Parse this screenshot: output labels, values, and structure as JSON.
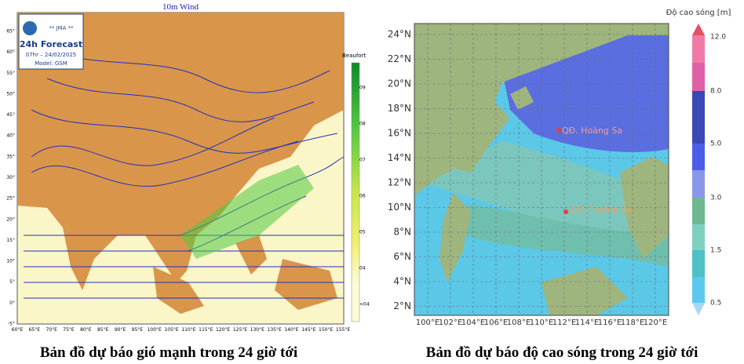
{
  "wind_map": {
    "title": "10m Wind",
    "logo_text": "** JMA **",
    "forecast": "24h Forecast",
    "time": "07hr – 24/02/2025",
    "model": "Model: GSM",
    "legend_title": "Beaufort",
    "legend_ticks": [
      "09",
      "08",
      "07",
      "06",
      "05",
      "04",
      "<04"
    ],
    "lat_labels": [
      "65°",
      "60°",
      "55°",
      "50°",
      "45°",
      "40°",
      "35°",
      "30°",
      "25°",
      "20°",
      "15°",
      "10°",
      "5°",
      "0°",
      "-5°"
    ],
    "lon_labels": [
      "60°E",
      "65°E",
      "70°E",
      "75°E",
      "80°E",
      "85°E",
      "90°E",
      "95°E",
      "100°E",
      "105°E",
      "110°E",
      "115°E",
      "120°E",
      "125°E",
      "130°E",
      "135°E",
      "140°E",
      "145°E",
      "150°E",
      "155°E"
    ],
    "caption": "Bản đồ dự báo gió mạnh trong 24 giờ tới"
  },
  "wave_map": {
    "legend_title": "Độ cao sóng [m]",
    "legend_ticks": [
      "12.0",
      "8.0",
      "5.0",
      "3.0",
      "1.5",
      "0.5"
    ],
    "lat_labels": [
      "24°N",
      "22°N",
      "20°N",
      "18°N",
      "16°N",
      "14°N",
      "12°N",
      "10°N",
      "8°N",
      "6°N",
      "4°N",
      "2°N"
    ],
    "lon_labels": [
      "100°E",
      "102°E",
      "104°E",
      "106°E",
      "108°E",
      "110°E",
      "112°E",
      "114°E",
      "116°E",
      "118°E",
      "120°E"
    ],
    "place_1": "QĐ. Hoàng Sa",
    "place_2": "QĐ. Trường Sa",
    "caption": "Bản đồ dự báo độ cao sóng trong 24 giờ tới"
  }
}
